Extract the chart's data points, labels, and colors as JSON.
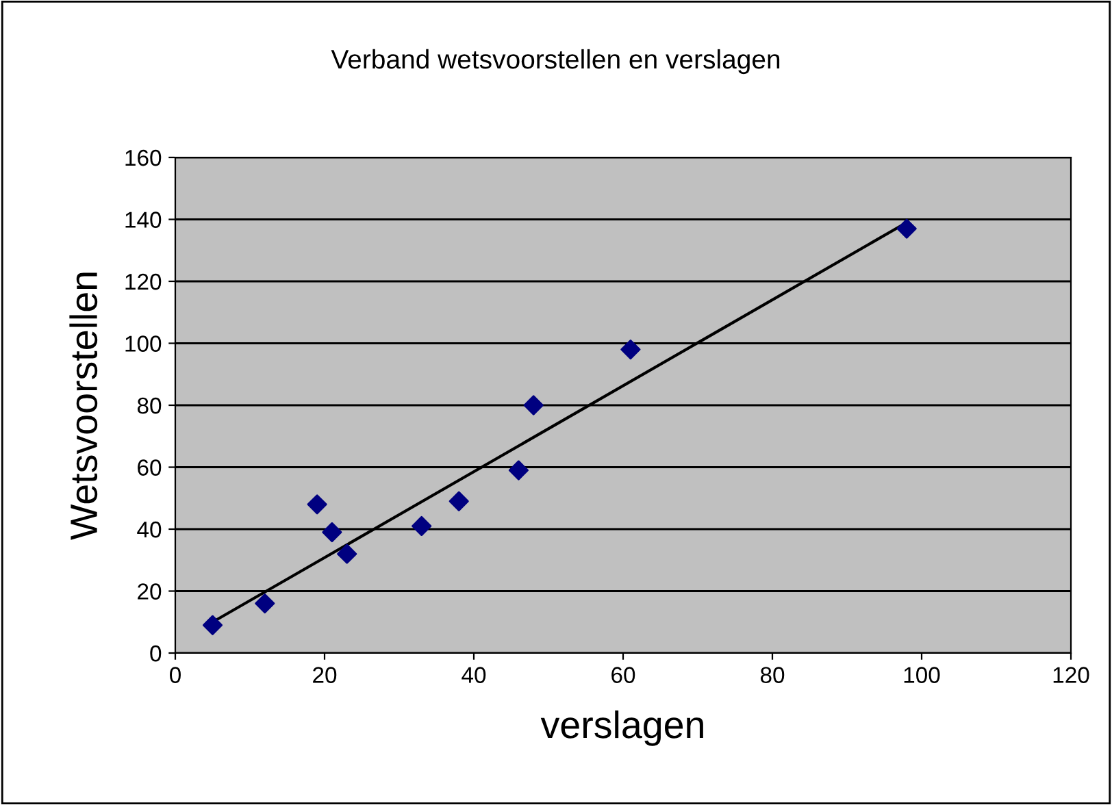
{
  "chart_data": {
    "type": "scatter",
    "title": "Verband wetsvoorstellen en verslagen",
    "xlabel": "verslagen",
    "ylabel": "Wetsvoorstellen",
    "series": [
      {
        "color": "#000080",
        "marker": "diamond",
        "x": [
          5,
          12,
          19,
          21,
          23,
          33,
          38,
          46,
          48,
          61,
          98
        ],
        "values": [
          9,
          16,
          48,
          39,
          32,
          41,
          49,
          59,
          80,
          98,
          137
        ]
      },
      {
        "type": "line",
        "color": "#000000",
        "marker": "none",
        "x": [
          5,
          98
        ],
        "values": [
          10,
          139
        ]
      }
    ],
    "xlim": [
      0,
      120
    ],
    "xticks": [
      0,
      20,
      40,
      60,
      80,
      100,
      120
    ],
    "ylim": [
      0,
      160
    ],
    "yticks": [
      0,
      20,
      40,
      60,
      80,
      100,
      120,
      140,
      160
    ],
    "grid": "y",
    "legend": false
  }
}
